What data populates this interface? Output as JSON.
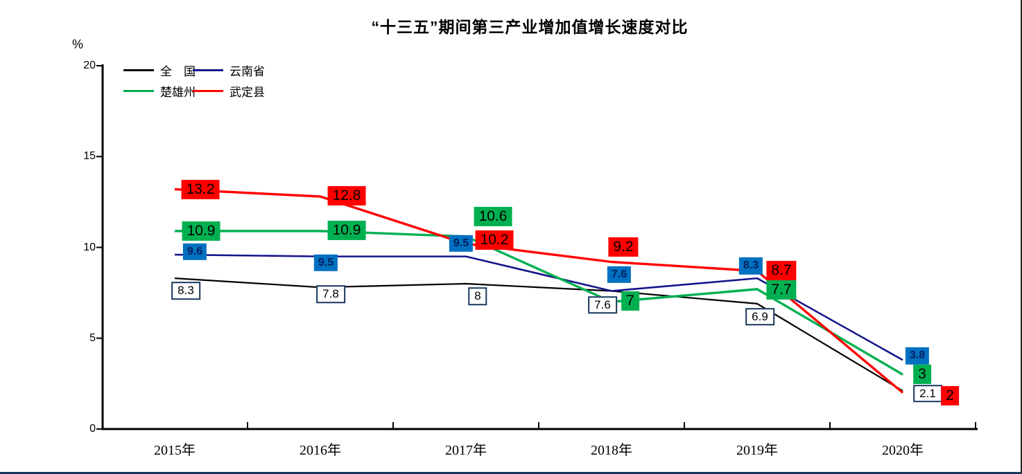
{
  "window": {
    "bottom_border_color": "#17375D",
    "right_border_color": "#262626"
  },
  "chart_data": {
    "type": "line",
    "title": "“十三五”期间第三产业增加值增长速度对比",
    "ylabel": "%",
    "xlabel": "",
    "categories": [
      "2015年",
      "2016年",
      "2017年",
      "2018年",
      "2019年",
      "2020年"
    ],
    "y_ticks": [
      0,
      5,
      10,
      15,
      20
    ],
    "ylim": [
      0,
      20
    ],
    "grid": false,
    "legend_position": "top-left-inside",
    "series": [
      {
        "key": "national",
        "name": "全　国",
        "color": "#000000",
        "label_style": "white-box",
        "values": [
          8.3,
          7.8,
          8,
          7.6,
          6.9,
          2.1
        ],
        "label_offsets": [
          [
            16,
            18
          ],
          [
            15,
            10
          ],
          [
            17,
            18
          ],
          [
            -13,
            20
          ],
          [
            4,
            19
          ],
          [
            36,
            4
          ]
        ]
      },
      {
        "key": "yunnan",
        "name": "云南省",
        "color": "#14148C",
        "label_style": "blue-box",
        "values": [
          9.6,
          9.5,
          9.5,
          7.6,
          8.3,
          3.8
        ],
        "label_offsets": [
          [
            29,
            -4
          ],
          [
            8,
            9
          ],
          [
            -7,
            -19
          ],
          [
            11,
            -24
          ],
          [
            -9,
            -18
          ],
          [
            21,
            -6
          ]
        ]
      },
      {
        "key": "chuxiong",
        "name": "楚雄州",
        "color": "#00B050",
        "label_style": "green-box",
        "values": [
          10.9,
          10.9,
          10.6,
          7,
          7.7,
          3
        ],
        "label_offsets": [
          [
            38,
            0
          ],
          [
            38,
            -1
          ],
          [
            39,
            -29
          ],
          [
            27,
            -1
          ],
          [
            35,
            1
          ],
          [
            28,
            0
          ]
        ]
      },
      {
        "key": "wuding",
        "name": "武定县",
        "color": "#FF0000",
        "label_style": "red-box",
        "values": [
          13.2,
          12.8,
          10.2,
          9.2,
          8.7,
          2
        ],
        "label_offsets": [
          [
            37,
            0
          ],
          [
            38,
            -1
          ],
          [
            41,
            -5
          ],
          [
            17,
            -22
          ],
          [
            35,
            -1
          ],
          [
            68,
            4
          ]
        ]
      }
    ],
    "label_colors": {
      "blue_box_bg": "#0070C0",
      "blue_box_text": "#002060",
      "green_box_bg": "#00B050",
      "red_box_bg": "#FF0000",
      "white_box_border": "#17375D",
      "axis_color": "#000000"
    }
  }
}
